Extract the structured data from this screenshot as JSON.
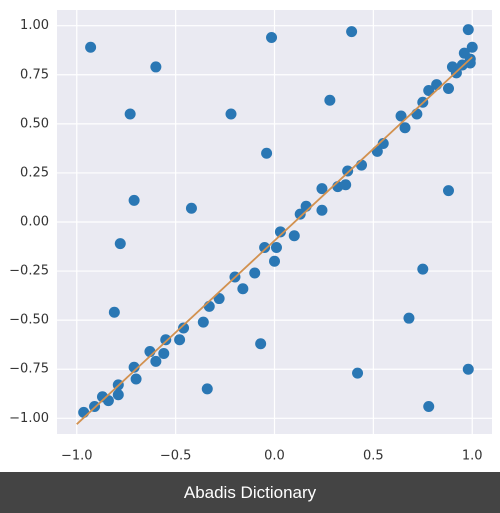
{
  "chart_data": {
    "type": "scatter",
    "xlim": [
      -1.1,
      1.1
    ],
    "ylim": [
      -1.08,
      1.08
    ],
    "xticks": [
      {
        "value": -1,
        "label": "−1.0"
      },
      {
        "value": -0.5,
        "label": "−0.5"
      },
      {
        "value": 0,
        "label": "0.0"
      },
      {
        "value": 0.5,
        "label": "0.5"
      },
      {
        "value": 1,
        "label": "1.0"
      }
    ],
    "yticks": [
      {
        "value": 1,
        "label": "1.00"
      },
      {
        "value": 0.75,
        "label": "0.75"
      },
      {
        "value": 0.5,
        "label": "0.50"
      },
      {
        "value": 0.25,
        "label": "0.25"
      },
      {
        "value": 0,
        "label": "0.00"
      },
      {
        "value": -0.25,
        "label": "−0.25"
      },
      {
        "value": -0.5,
        "label": "−0.50"
      },
      {
        "value": -0.75,
        "label": "−0.75"
      },
      {
        "value": -1,
        "label": "−1.00"
      }
    ],
    "grid": true,
    "series": [
      {
        "type": "scatter",
        "color": "#2a77b4",
        "x": [
          -0.965,
          -0.91,
          -0.87,
          -0.84,
          -0.79,
          -0.79,
          -0.71,
          -0.7,
          -0.63,
          -0.6,
          -0.56,
          -0.55,
          -0.48,
          -0.46,
          -0.36,
          -0.33,
          -0.28,
          -0.2,
          -0.16,
          -0.1,
          -0.05,
          0,
          0.01,
          0.03,
          0.1,
          0.13,
          0.16,
          0.24,
          0.24,
          0.32,
          0.36,
          0.37,
          0.44,
          0.52,
          0.55,
          0.64,
          0.66,
          0.72,
          0.75,
          0.78,
          0.82,
          0.88,
          0.9,
          0.92,
          0.95,
          0.96,
          0.99,
          0.99,
          0.98,
          1.0,
          -0.93,
          -0.6,
          -0.73,
          -0.71,
          -0.78,
          -0.81,
          -0.42,
          -0.22,
          -0.015,
          0.39,
          0.28,
          -0.04,
          -0.07,
          -0.34,
          0.42,
          0.88,
          0.75,
          0.68,
          0.78,
          0.98
        ],
        "y": [
          -0.97,
          -0.94,
          -0.89,
          -0.91,
          -0.83,
          -0.88,
          -0.74,
          -0.8,
          -0.66,
          -0.71,
          -0.67,
          -0.6,
          -0.6,
          -0.54,
          -0.51,
          -0.43,
          -0.39,
          -0.28,
          -0.34,
          -0.26,
          -0.13,
          -0.2,
          -0.13,
          -0.05,
          -0.07,
          0.04,
          0.08,
          0.06,
          0.17,
          0.18,
          0.19,
          0.26,
          0.29,
          0.36,
          0.4,
          0.54,
          0.48,
          0.55,
          0.61,
          0.67,
          0.7,
          0.68,
          0.79,
          0.76,
          0.8,
          0.86,
          0.83,
          0.81,
          0.98,
          0.89,
          0.89,
          0.79,
          0.55,
          0.11,
          -0.11,
          -0.46,
          0.07,
          0.55,
          0.94,
          0.97,
          0.62,
          0.35,
          -0.62,
          -0.85,
          -0.77,
          0.16,
          -0.24,
          -0.49,
          -0.94,
          -0.75
        ]
      },
      {
        "type": "line",
        "color": "#d2914f",
        "x": [
          -1,
          1
        ],
        "y": [
          -1.03,
          0.84
        ]
      }
    ]
  },
  "caption": "Abadis Dictionary"
}
